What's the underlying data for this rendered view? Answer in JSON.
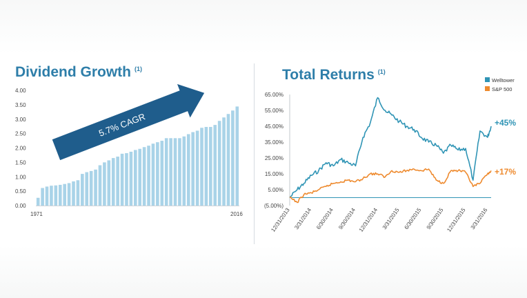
{
  "colors": {
    "title": "#2e7ea9",
    "dividend_bars": "#a9d3e8",
    "arrow": "#1f5d8c",
    "welltower": "#2f94b5",
    "sp500": "#ee8a2e",
    "baseline": "#2f94b5"
  },
  "left": {
    "title": "Dividend Growth",
    "footnote": "(1)",
    "arrow_label": "5.7% CAGR"
  },
  "right": {
    "title": "Total Returns",
    "footnote": "(1)",
    "end_label_welltower": "+45%",
    "end_label_sp500": "+17%"
  },
  "chart_data": [
    {
      "type": "bar",
      "title": "Dividend Growth",
      "annotation": "5.7% CAGR",
      "ylim": [
        0,
        4.0
      ],
      "yticks": [
        "0.00",
        "0.50",
        "1.00",
        "1.50",
        "2.00",
        "2.50",
        "3.00",
        "3.50",
        "4.00"
      ],
      "xtick_labels": [
        "1971",
        "2016"
      ],
      "grid": false,
      "categories": [
        "1971",
        "1972",
        "1973",
        "1974",
        "1975",
        "1976",
        "1977",
        "1978",
        "1979",
        "1980",
        "1981",
        "1982",
        "1983",
        "1984",
        "1985",
        "1986",
        "1987",
        "1988",
        "1989",
        "1990",
        "1991",
        "1992",
        "1993",
        "1994",
        "1995",
        "1996",
        "1997",
        "1998",
        "1999",
        "2000",
        "2001",
        "2002",
        "2003",
        "2004",
        "2005",
        "2006",
        "2007",
        "2008",
        "2009",
        "2010",
        "2011",
        "2012",
        "2013",
        "2014",
        "2015",
        "2016"
      ],
      "values": [
        0.27,
        0.61,
        0.66,
        0.69,
        0.7,
        0.72,
        0.75,
        0.78,
        0.84,
        0.88,
        1.1,
        1.16,
        1.2,
        1.25,
        1.4,
        1.5,
        1.57,
        1.65,
        1.7,
        1.8,
        1.82,
        1.87,
        1.93,
        1.97,
        2.03,
        2.08,
        2.15,
        2.2,
        2.25,
        2.34,
        2.34,
        2.34,
        2.34,
        2.4,
        2.48,
        2.55,
        2.6,
        2.7,
        2.73,
        2.73,
        2.8,
        2.94,
        3.06,
        3.18,
        3.3,
        3.44
      ]
    },
    {
      "type": "line",
      "title": "Total Returns",
      "ylim": [
        -5,
        65
      ],
      "yticks": [
        "(5.00%)",
        "5.00%",
        "15.00%",
        "25.00%",
        "35.00%",
        "45.00%",
        "55.00%",
        "65.00%"
      ],
      "xtick_labels": [
        "12/31/2013",
        "3/31/2014",
        "6/30/2014",
        "9/30/2014",
        "12/31/2014",
        "3/31/2015",
        "6/30/2015",
        "9/30/2015",
        "12/31/2015",
        "3/31/2016"
      ],
      "legend": "top-right",
      "grid": false,
      "series": [
        {
          "name": "Welltower",
          "end_label": "+45%",
          "x": [
            "12/31/2013",
            "1/31/2014",
            "2/28/2014",
            "3/31/2014",
            "4/30/2014",
            "5/31/2014",
            "6/30/2014",
            "7/31/2014",
            "8/31/2014",
            "9/30/2014",
            "10/31/2014",
            "11/30/2014",
            "12/31/2014",
            "1/31/2015",
            "2/28/2015",
            "3/31/2015",
            "4/30/2015",
            "5/31/2015",
            "6/30/2015",
            "7/31/2015",
            "8/31/2015",
            "9/30/2015",
            "10/31/2015",
            "11/30/2015",
            "12/31/2015",
            "1/31/2016",
            "2/29/2016",
            "3/31/2016",
            "4/15/2016"
          ],
          "values": [
            0,
            5,
            9,
            14,
            17,
            22,
            20,
            24,
            22,
            20,
            38,
            47,
            63,
            55,
            52,
            48,
            45,
            43,
            38,
            35,
            33,
            28,
            33,
            30,
            31,
            11,
            42,
            38,
            45
          ]
        },
        {
          "name": "S&P 500",
          "end_label": "+17%",
          "x": [
            "12/31/2013",
            "1/31/2014",
            "2/28/2014",
            "3/31/2014",
            "4/30/2014",
            "5/31/2014",
            "6/30/2014",
            "7/31/2014",
            "8/31/2014",
            "9/30/2014",
            "10/31/2014",
            "11/30/2014",
            "12/31/2014",
            "1/31/2015",
            "2/28/2015",
            "3/31/2015",
            "4/30/2015",
            "5/31/2015",
            "6/30/2015",
            "7/31/2015",
            "8/31/2015",
            "9/30/2015",
            "10/31/2015",
            "11/30/2015",
            "12/31/2015",
            "1/31/2016",
            "2/29/2016",
            "3/31/2016",
            "4/15/2016"
          ],
          "values": [
            0,
            -3,
            2,
            3,
            5,
            7,
            9,
            10,
            11,
            10,
            12,
            15,
            15,
            13,
            17,
            16,
            17,
            18,
            17,
            18,
            11,
            9,
            17,
            17,
            16,
            7,
            9,
            15,
            17
          ]
        }
      ]
    }
  ]
}
